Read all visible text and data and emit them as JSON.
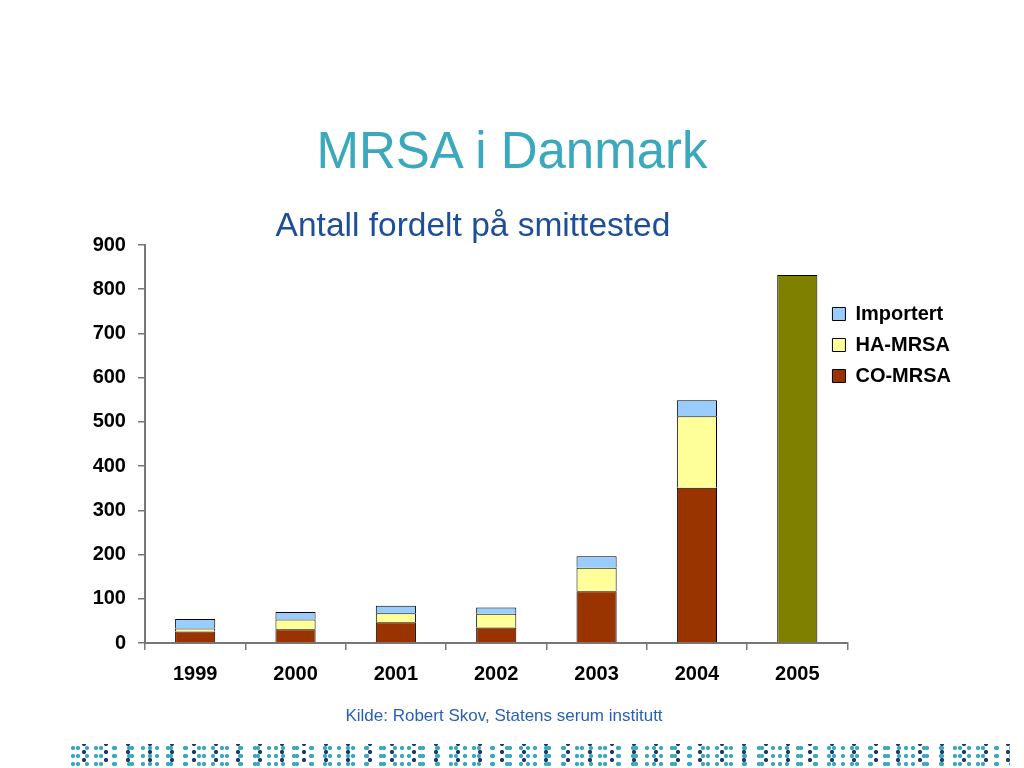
{
  "chart_data": {
    "type": "bar",
    "title": "MRSA i Danmark",
    "subtitle": "Antall fordelt på smittested",
    "annotations": [
      "Kilde: Robert Skov, Statens serum institutt"
    ],
    "categories": [
      "1999",
      "2000",
      "2001",
      "2002",
      "2003",
      "2004",
      "2005"
    ],
    "series": [
      {
        "name": "CO-MRSA",
        "color": "#993300",
        "values": [
          26,
          31,
          47,
          35,
          117,
          351,
          null
        ]
      },
      {
        "name": "HA-MRSA",
        "color": "#ffff99",
        "values": [
          7,
          22,
          20,
          31,
          53,
          162,
          null
        ]
      },
      {
        "name": "Importert",
        "color": "#99ccff",
        "values": [
          21,
          17,
          17,
          14,
          26,
          36,
          null
        ]
      },
      {
        "color": "#808000",
        "values": [
          null,
          null,
          null,
          null,
          null,
          null,
          832
        ]
      }
    ],
    "stacked": true,
    "ylim": [
      0,
      900
    ],
    "yticks": [
      0,
      100,
      200,
      300,
      400,
      500,
      600,
      700,
      800,
      900
    ],
    "grid": false,
    "legend": "right"
  }
}
